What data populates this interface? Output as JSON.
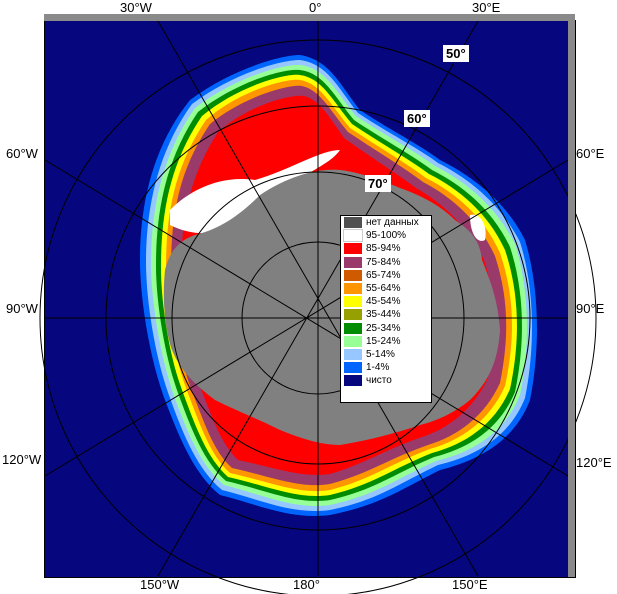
{
  "longitude_labels": {
    "top": [
      "30°W",
      "0°",
      "30°E"
    ],
    "left": [
      "60°W",
      "90°W",
      "120°W"
    ],
    "right": [
      "60°E",
      "90°E",
      "120°E"
    ],
    "bottom": [
      "150°W",
      "180°",
      "150°E"
    ]
  },
  "latitude_labels": [
    "50°",
    "60°",
    "70°"
  ],
  "legend": [
    {
      "label": "нет данных",
      "color": "#505050"
    },
    {
      "label": "95-100%",
      "color": "#ffffff"
    },
    {
      "label": "85-94%",
      "color": "#ff0000"
    },
    {
      "label": "75-84%",
      "color": "#9a3a6a"
    },
    {
      "label": "65-74%",
      "color": "#d05a00"
    },
    {
      "label": "55-64%",
      "color": "#ff9600"
    },
    {
      "label": "45-54%",
      "color": "#ffff00"
    },
    {
      "label": "35-44%",
      "color": "#96a000"
    },
    {
      "label": "25-34%",
      "color": "#008c00"
    },
    {
      "label": "15-24%",
      "color": "#96ff96"
    },
    {
      "label": "5-14%",
      "color": "#96c8ff"
    },
    {
      "label": "1-4%",
      "color": "#0064ff"
    },
    {
      "label": "чисто",
      "color": "#06067f"
    }
  ],
  "colors": {
    "ocean": "#06067f",
    "land": "#808080",
    "grid": "#000000",
    "frame_bar": "#8a8a8a"
  }
}
